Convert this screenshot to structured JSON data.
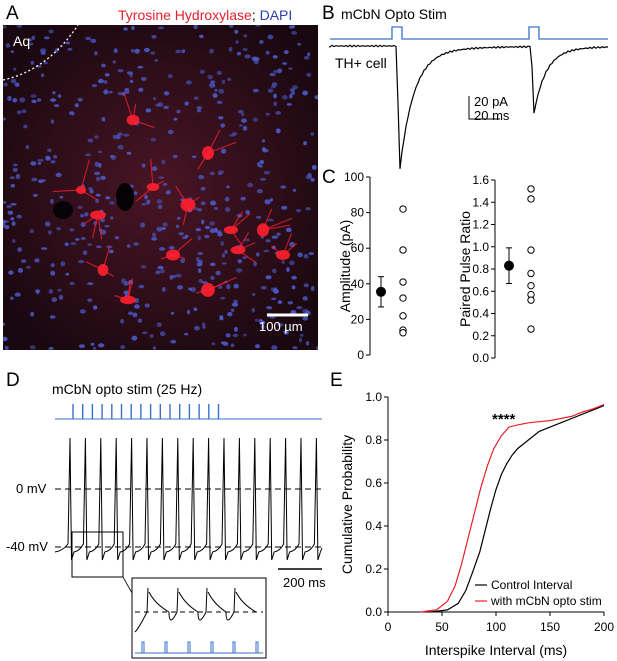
{
  "panels": {
    "A": {
      "label": "A",
      "title_red": "Tyrosine Hydroxylase",
      "title_sep": ";",
      "title_blue": "DAPI",
      "aq_label": "Aq",
      "scalebar_label": "100 µm",
      "colors": {
        "th": "#ff2030",
        "dapi": "#4a5ac8",
        "bg": "#1a0810"
      }
    },
    "B": {
      "label": "B",
      "stim_label": "mCbN Opto Stim",
      "cell_label": "TH+ cell",
      "scale_pA": "20 pA",
      "scale_ms": "20 ms",
      "stim_color": "#3a6fc9"
    },
    "C": {
      "label": "C"
    },
    "D": {
      "label": "D",
      "stim_label": "mCbN opto stim (25 Hz)",
      "zero_mv": "0 mV",
      "minus40_mv": "-40 mV",
      "scale_ms": "200 ms",
      "stim_color": "#3a6fc9",
      "n_stim_pulses": 16,
      "n_spikes": 17
    },
    "E": {
      "label": "E",
      "significance": "****"
    }
  },
  "chart_data": [
    {
      "id": "C-amplitude",
      "type": "scatter",
      "ylabel": "Amplitude (pA)",
      "ylim": [
        0,
        100
      ],
      "yticks": [
        0,
        20,
        40,
        60,
        80,
        100
      ],
      "mean": 35.5,
      "error": [
        27,
        44
      ],
      "points": [
        82,
        59,
        41,
        32,
        22,
        14,
        12.5
      ]
    },
    {
      "id": "C-ppr",
      "type": "scatter",
      "ylabel": "Paired Pulse Ratio",
      "ylim": [
        0,
        1.6
      ],
      "yticks": [
        "0.0",
        "0.2",
        "0.4",
        "0.6",
        "0.8",
        "1.0",
        "1.2",
        "1.4",
        "1.6"
      ],
      "mean": 0.83,
      "error": [
        0.67,
        0.99
      ],
      "points": [
        1.52,
        1.43,
        0.97,
        0.76,
        0.65,
        0.57,
        0.52,
        0.26
      ]
    },
    {
      "id": "E-cdf",
      "type": "line",
      "xlabel": "Interspike Interval (ms)",
      "ylabel": "Cumulative Probability",
      "xlim": [
        0,
        200
      ],
      "ylim": [
        0,
        1.0
      ],
      "xticks": [
        0,
        50,
        100,
        150,
        200
      ],
      "yticks": [
        "0.0",
        "0.2",
        "0.4",
        "0.6",
        "0.8",
        "1.0"
      ],
      "series": [
        {
          "name": "Control Interval",
          "color": "#000000",
          "x": [
            40,
            55,
            65,
            72,
            78,
            85,
            90,
            95,
            100,
            105,
            110,
            115,
            120,
            130,
            140,
            150,
            160,
            170,
            180,
            190,
            200
          ],
          "y": [
            0,
            0.01,
            0.04,
            0.1,
            0.18,
            0.28,
            0.38,
            0.48,
            0.57,
            0.64,
            0.69,
            0.73,
            0.76,
            0.8,
            0.84,
            0.86,
            0.88,
            0.9,
            0.92,
            0.94,
            0.96
          ]
        },
        {
          "name": "with mCbN opto stim",
          "color": "#e8202a",
          "x": [
            30,
            45,
            55,
            62,
            68,
            74,
            80,
            86,
            92,
            98,
            105,
            112,
            120,
            130,
            140,
            150,
            160,
            170,
            180,
            190,
            200
          ],
          "y": [
            0,
            0.01,
            0.05,
            0.12,
            0.22,
            0.34,
            0.46,
            0.58,
            0.68,
            0.76,
            0.82,
            0.86,
            0.87,
            0.88,
            0.885,
            0.89,
            0.9,
            0.91,
            0.93,
            0.945,
            0.965
          ]
        }
      ]
    }
  ]
}
